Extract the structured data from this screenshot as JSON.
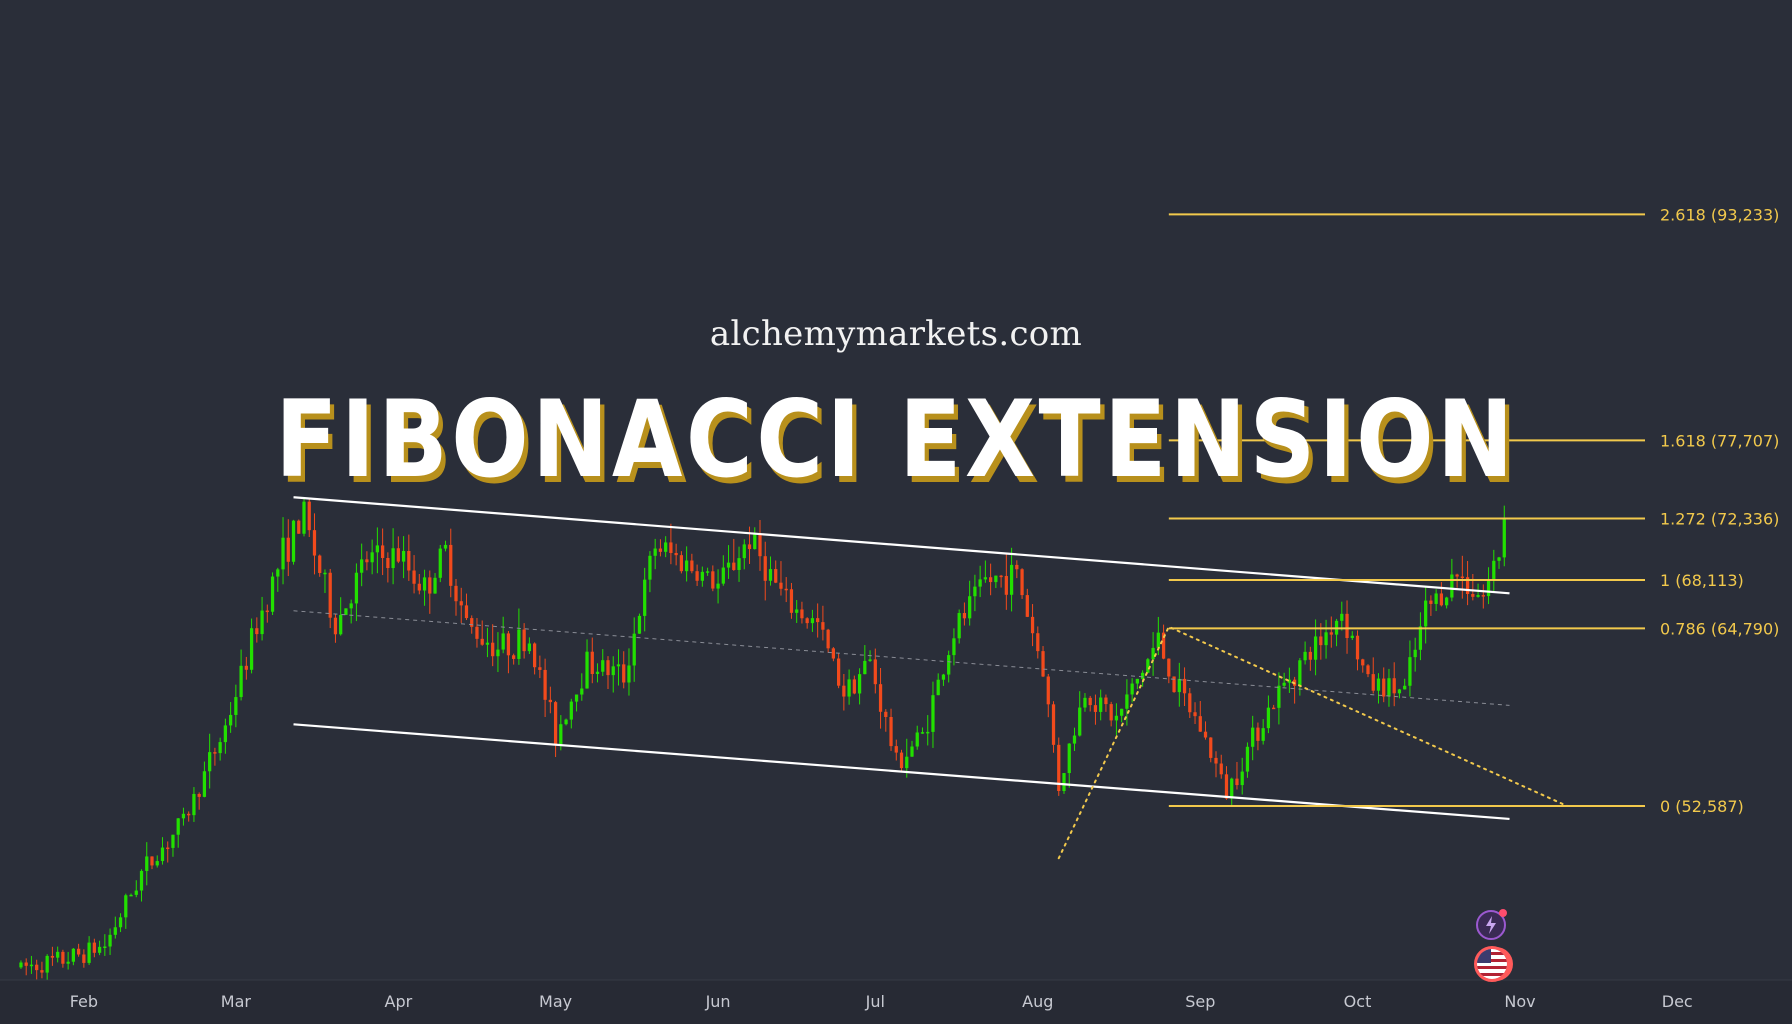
{
  "watermark": {
    "site": "alchemymarkets.com",
    "headline": "FIBONACCI EXTENSION"
  },
  "colors": {
    "background": "#2a2e39",
    "up_candle": "#22e000",
    "down_candle": "#f24a1c",
    "fib_line": "#f2c94c",
    "channel": "#ffffff",
    "headline_shadow": "#b8901c"
  },
  "badges": {
    "top_icon": "lightning-icon",
    "bottom_icon": "us-flag-icon"
  },
  "chart_data": {
    "type": "candlestick",
    "title": "",
    "xlabel": "",
    "ylabel": "",
    "x_ticks": [
      "Feb",
      "Mar",
      "Apr",
      "May",
      "Jun",
      "Jul",
      "Aug",
      "Sep",
      "Oct",
      "Nov",
      "Dec"
    ],
    "ylim": [
      38000,
      100000
    ],
    "grid": false,
    "legend": "none",
    "close_path": [
      [
        "2024-01-20",
        41500
      ],
      [
        "2024-01-28",
        42000
      ],
      [
        "2024-02-05",
        43000
      ],
      [
        "2024-02-12",
        48000
      ],
      [
        "2024-02-20",
        51500
      ],
      [
        "2024-02-28",
        58000
      ],
      [
        "2024-03-05",
        65000
      ],
      [
        "2024-03-10",
        70000
      ],
      [
        "2024-03-14",
        72500
      ],
      [
        "2024-03-20",
        65000
      ],
      [
        "2024-03-26",
        69500
      ],
      [
        "2024-04-01",
        69800
      ],
      [
        "2024-04-06",
        67500
      ],
      [
        "2024-04-10",
        70000
      ],
      [
        "2024-04-14",
        65000
      ],
      [
        "2024-04-20",
        63500
      ],
      [
        "2024-04-26",
        64000
      ],
      [
        "2024-05-01",
        57500
      ],
      [
        "2024-05-07",
        62500
      ],
      [
        "2024-05-14",
        61500
      ],
      [
        "2024-05-20",
        70500
      ],
      [
        "2024-05-27",
        69000
      ],
      [
        "2024-06-01",
        67700
      ],
      [
        "2024-06-07",
        71000
      ],
      [
        "2024-06-14",
        66500
      ],
      [
        "2024-06-20",
        65000
      ],
      [
        "2024-06-25",
        60500
      ],
      [
        "2024-06-30",
        62500
      ],
      [
        "2024-07-05",
        55500
      ],
      [
        "2024-07-10",
        57500
      ],
      [
        "2024-07-16",
        64500
      ],
      [
        "2024-07-22",
        68000
      ],
      [
        "2024-07-28",
        68500
      ],
      [
        "2024-08-02",
        62000
      ],
      [
        "2024-08-05",
        54000
      ],
      [
        "2024-08-10",
        60500
      ],
      [
        "2024-08-16",
        58500
      ],
      [
        "2024-08-24",
        64000
      ],
      [
        "2024-08-27",
        61000
      ],
      [
        "2024-09-01",
        58000
      ],
      [
        "2024-09-06",
        53500
      ],
      [
        "2024-09-12",
        58000
      ],
      [
        "2024-09-18",
        61500
      ],
      [
        "2024-09-24",
        64000
      ],
      [
        "2024-09-28",
        66000
      ],
      [
        "2024-10-03",
        61000
      ],
      [
        "2024-10-10",
        60500
      ],
      [
        "2024-10-14",
        66000
      ],
      [
        "2024-10-20",
        68500
      ],
      [
        "2024-10-25",
        67000
      ],
      [
        "2024-10-28",
        70000
      ],
      [
        "2024-10-29",
        72500
      ]
    ],
    "fibonacci_extension": [
      {
        "ratio": "2.618",
        "price": "93,233",
        "label": "2.618 (93,233)"
      },
      {
        "ratio": "1.618",
        "price": "77,707",
        "label": "1.618 (77,707)"
      },
      {
        "ratio": "1.272",
        "price": "72,336",
        "label": "1.272 (72,336)"
      },
      {
        "ratio": "1",
        "price": "68,113",
        "label": "1 (68,113)"
      },
      {
        "ratio": "0.786",
        "price": "64,790",
        "label": "0.786 (64,790)"
      },
      {
        "ratio": "0",
        "price": "52,587",
        "label": "0 (52,587)"
      }
    ],
    "fib_anchor_points": [
      [
        "2024-08-05",
        49000
      ],
      [
        "2024-08-26",
        64900
      ],
      [
        "2024-11-10",
        52587
      ]
    ],
    "channel": {
      "upper": [
        [
          "2024-03-12",
          73800
        ],
        [
          "2024-10-30",
          67200
        ]
      ],
      "lower": [
        [
          "2024-03-12",
          58200
        ],
        [
          "2024-10-30",
          51700
        ]
      ],
      "mid": [
        [
          "2024-03-12",
          66000
        ],
        [
          "2024-10-30",
          59500
        ]
      ]
    }
  }
}
